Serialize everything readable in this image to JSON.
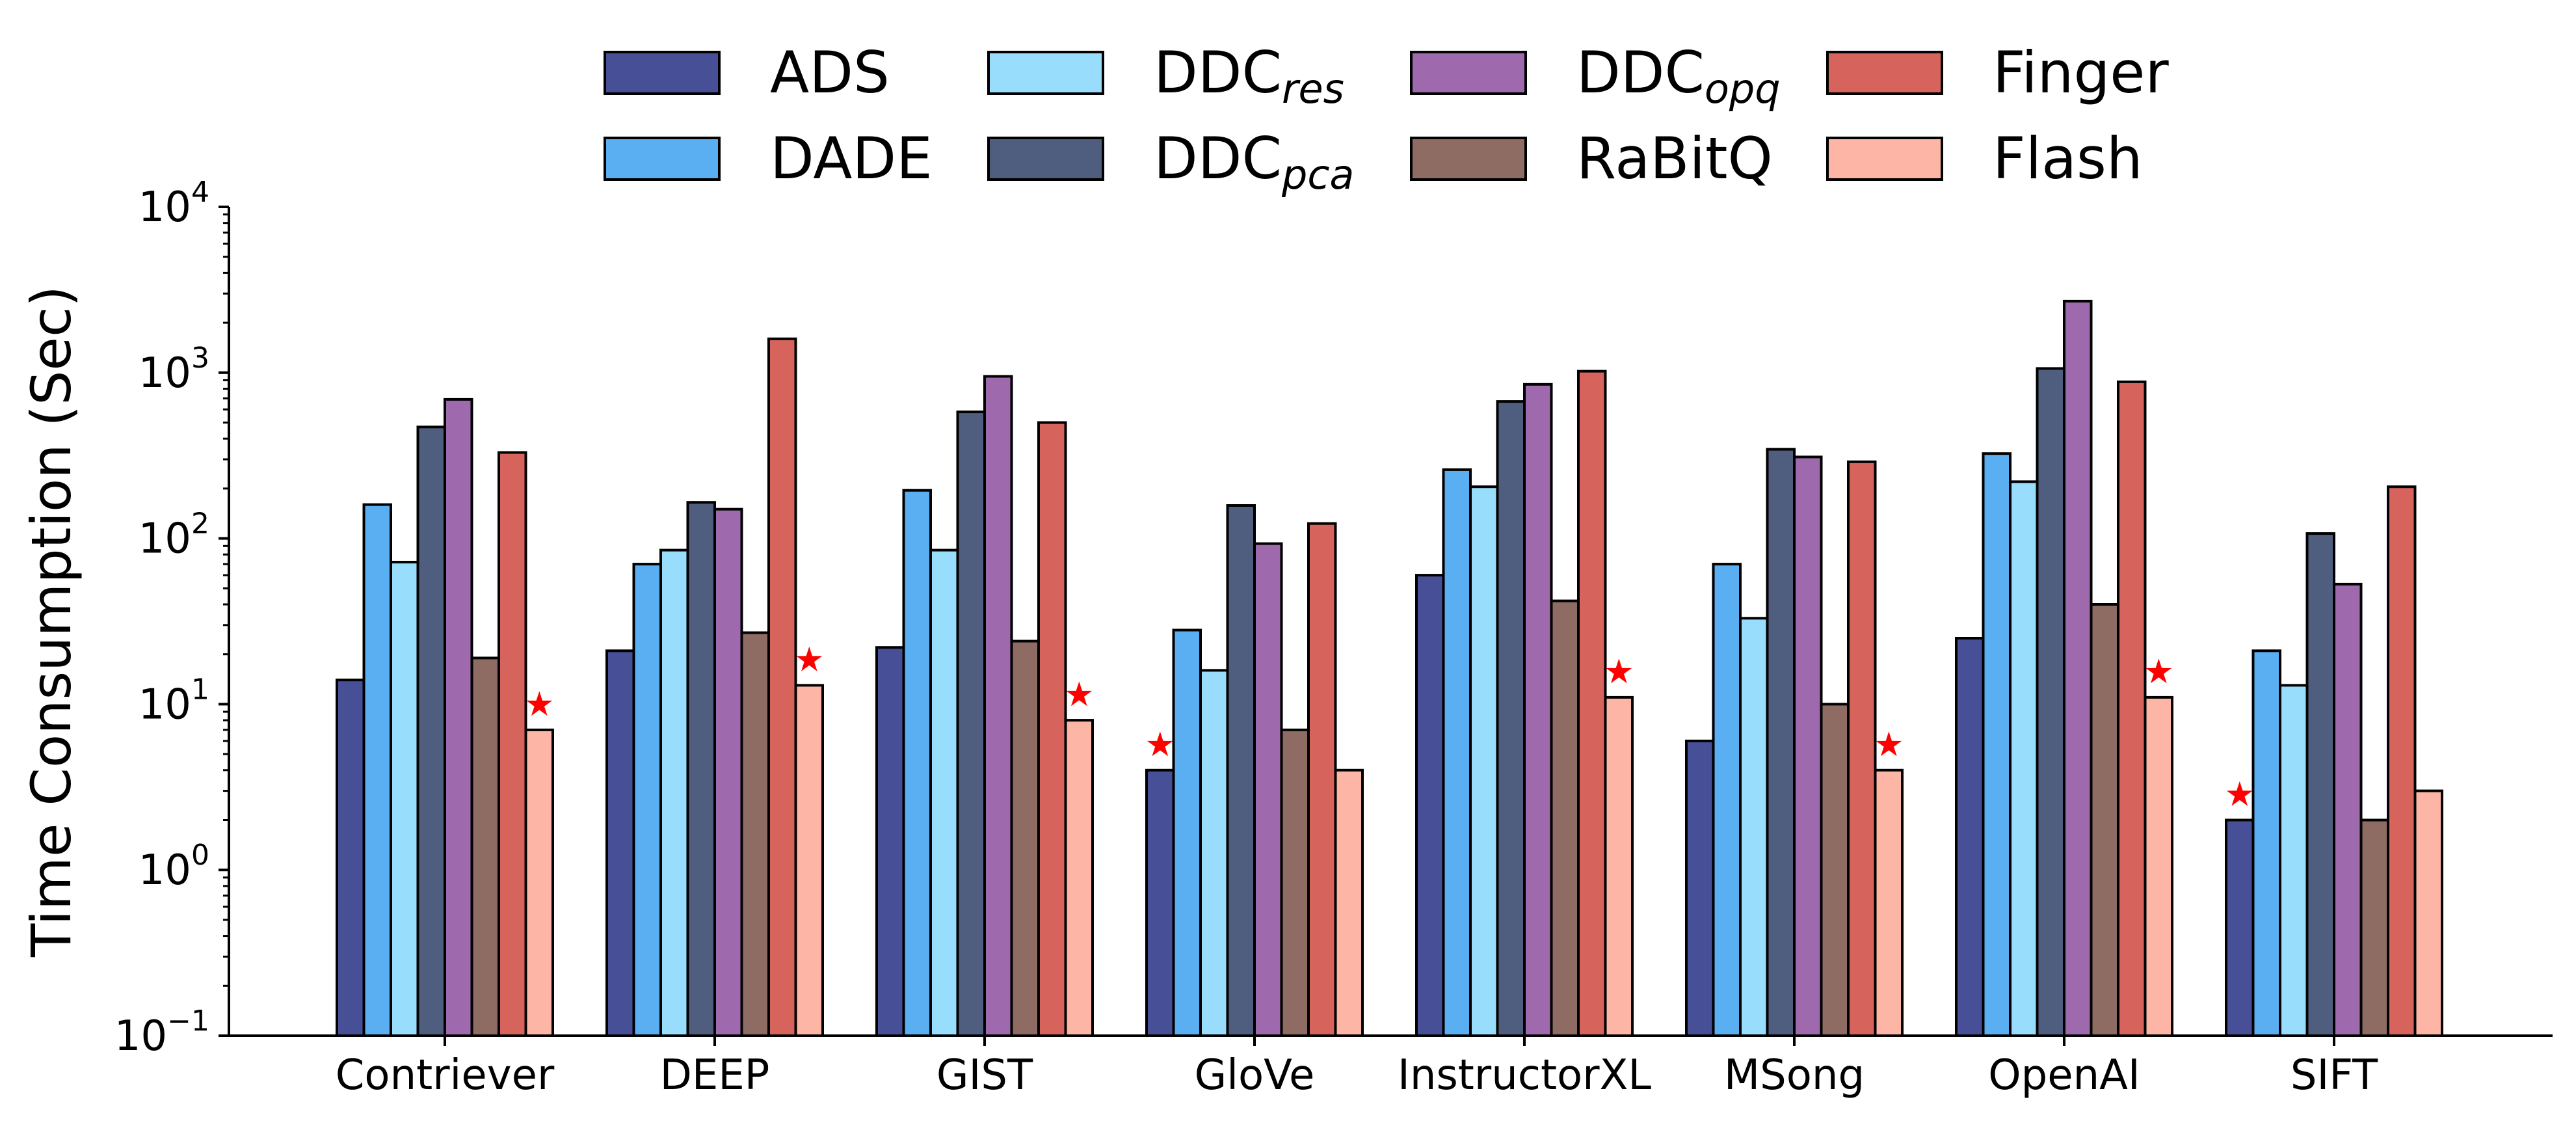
{
  "chart_data": {
    "type": "bar",
    "ylabel": "Time Consumption (Sec)",
    "yscale": "log",
    "ylim": [
      0.1,
      10000
    ],
    "ytick_labels": [
      {
        "base": "10",
        "exp": "−1",
        "value": 0.1
      },
      {
        "base": "10",
        "exp": "0",
        "value": 1
      },
      {
        "base": "10",
        "exp": "1",
        "value": 10
      },
      {
        "base": "10",
        "exp": "2",
        "value": 100
      },
      {
        "base": "10",
        "exp": "3",
        "value": 1000
      },
      {
        "base": "10",
        "exp": "4",
        "value": 10000
      }
    ],
    "grid": false,
    "legend_placement": "top",
    "categories": [
      "Contriever",
      "DEEP",
      "GIST",
      "GloVe",
      "InstructorXL",
      "MSong",
      "OpenAI",
      "SIFT"
    ],
    "series": [
      {
        "name": "ADS",
        "name_sub": "",
        "color": "#474f97",
        "values": [
          14,
          21,
          22,
          4,
          60,
          6,
          25,
          2
        ]
      },
      {
        "name": "DADE",
        "name_sub": "",
        "color": "#5aaef2",
        "values": [
          160,
          70,
          195,
          28,
          260,
          70,
          325,
          21
        ]
      },
      {
        "name": "DDC",
        "name_sub": "res",
        "color": "#99ddfc",
        "values": [
          72,
          85,
          85,
          16,
          205,
          33,
          220,
          13
        ]
      },
      {
        "name": "DDC",
        "name_sub": "pca",
        "color": "#4f5e7f",
        "values": [
          470,
          165,
          580,
          158,
          670,
          345,
          1060,
          107
        ]
      },
      {
        "name": "DDC",
        "name_sub": "opq",
        "color": "#9e69ad",
        "values": [
          690,
          150,
          950,
          93,
          850,
          310,
          2700,
          53
        ]
      },
      {
        "name": "RaBitQ",
        "name_sub": "",
        "color": "#8e6c64",
        "values": [
          19,
          27,
          24,
          7,
          42,
          10,
          40,
          2
        ]
      },
      {
        "name": "Finger",
        "name_sub": "",
        "color": "#d6645d",
        "values": [
          330,
          1600,
          500,
          123,
          1020,
          290,
          880,
          205
        ]
      },
      {
        "name": "Flash",
        "name_sub": "",
        "color": "#fdb6a6",
        "values": [
          7,
          13,
          8,
          4,
          11,
          4,
          11,
          3
        ]
      }
    ],
    "best_markers": [
      {
        "category": "Contriever",
        "series_index": 7
      },
      {
        "category": "DEEP",
        "series_index": 7
      },
      {
        "category": "GIST",
        "series_index": 7
      },
      {
        "category": "GloVe",
        "series_index": 0
      },
      {
        "category": "InstructorXL",
        "series_index": 7
      },
      {
        "category": "MSong",
        "series_index": 7
      },
      {
        "category": "OpenAI",
        "series_index": 7
      },
      {
        "category": "SIFT",
        "series_index": 0
      }
    ],
    "marker_symbol": "★",
    "marker_color": "#ff0000"
  }
}
